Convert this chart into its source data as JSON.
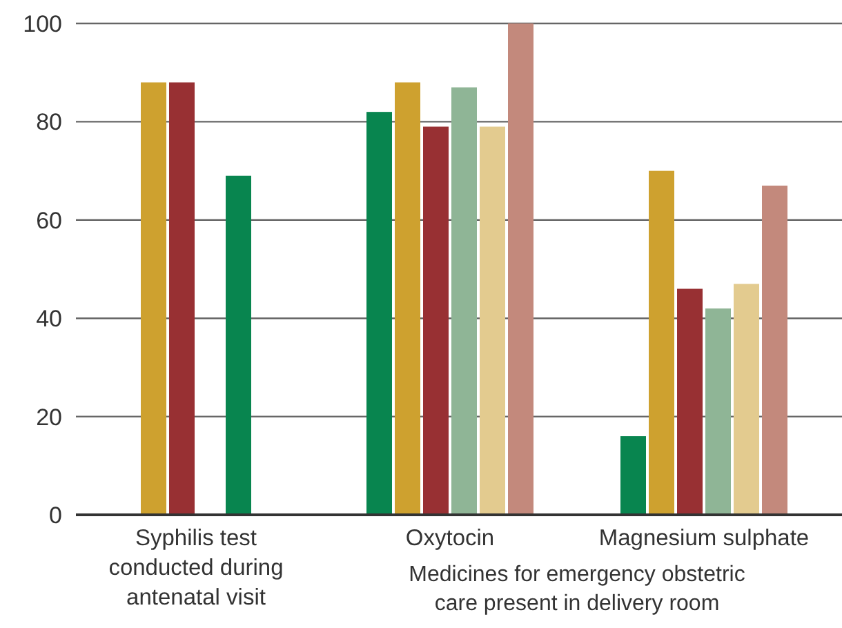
{
  "chart_data": {
    "type": "bar",
    "categories": [
      "Syphilis test conducted during antenatal visit",
      "Oxytocin",
      "Magnesium sulphate"
    ],
    "series": [
      {
        "color": "#08854f",
        "values": [
          null,
          82,
          16
        ]
      },
      {
        "color": "#cea12f",
        "values": [
          88,
          88,
          70
        ]
      },
      {
        "color": "#983033",
        "values": [
          88,
          79,
          46
        ]
      },
      {
        "color": "#8fb596",
        "values": [
          null,
          87,
          42
        ]
      },
      {
        "color": "#e3cb8f",
        "colors": [
          "#08854f",
          null,
          null
        ],
        "values": [
          69,
          79,
          47
        ]
      },
      {
        "color": "#c3897c",
        "values": [
          null,
          100,
          67
        ]
      }
    ],
    "ylim": [
      0,
      100
    ],
    "yticks": [
      0,
      20,
      40,
      60,
      80,
      100
    ],
    "grid": "y",
    "annotations": [
      "Medicines for emergency obstetric care present in delivery room"
    ]
  }
}
